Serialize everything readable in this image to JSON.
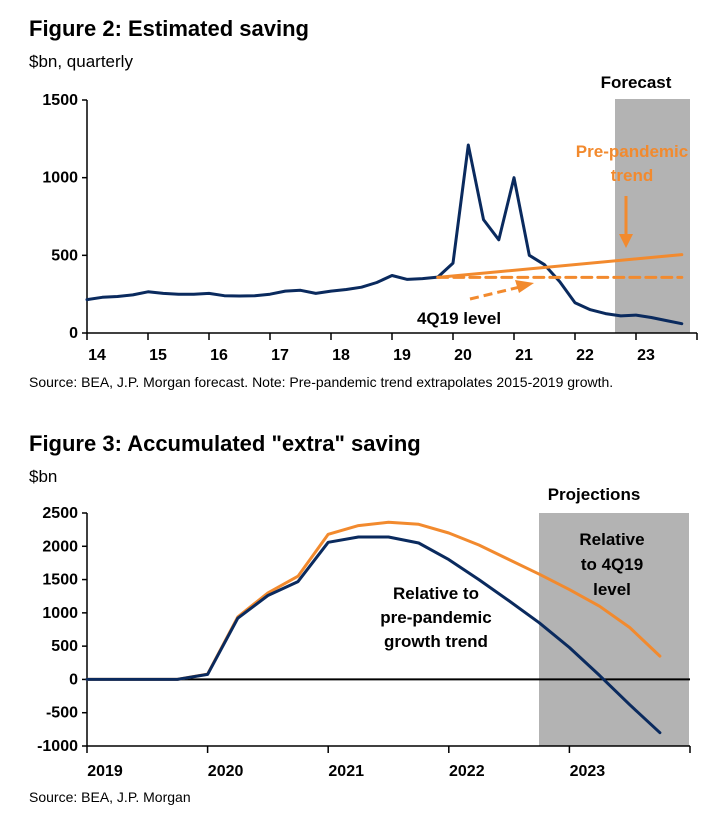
{
  "colors": {
    "navy": "#0a2a5e",
    "orange": "#f28a2e",
    "shade": "#b3b3b3",
    "axis": "#000000"
  },
  "fig2": {
    "title": "Figure 2: Estimated saving",
    "unit": "$bn, quarterly",
    "source": "Source: BEA, J.P. Morgan forecast. Note: Pre-pandemic trend extrapolates 2015-2019 growth.",
    "shade_label": "Forecast",
    "annotations": {
      "trend_line1": "Pre-pandemic",
      "trend_line2": "trend",
      "level": "4Q19 level"
    }
  },
  "fig3": {
    "title": "Figure 3: Accumulated \"extra\" saving",
    "unit": "$bn",
    "source": "Source: BEA, J.P. Morgan",
    "shade_label": "Projections",
    "annotations": {
      "relative_level": [
        "Relative",
        "to 4Q19",
        "level"
      ],
      "relative_trend": [
        "Relative to",
        "pre-pandemic",
        "growth trend"
      ]
    }
  },
  "chart_data": [
    {
      "type": "line",
      "title": "Figure 2: Estimated saving",
      "ylabel": "$bn, quarterly",
      "ylim": [
        0,
        1500
      ],
      "yticks": [
        0,
        500,
        1000,
        1500
      ],
      "xlim": [
        14.0,
        24.0
      ],
      "xtick_labels": [
        "14",
        "15",
        "16",
        "17",
        "18",
        "19",
        "20",
        "21",
        "22",
        "23"
      ],
      "forecast_start": 22.75,
      "series": [
        {
          "name": "Estimated saving",
          "color": "navy",
          "x": [
            14.0,
            14.25,
            14.5,
            14.75,
            15.0,
            15.25,
            15.5,
            15.75,
            16.0,
            16.25,
            16.5,
            16.75,
            17.0,
            17.25,
            17.5,
            17.75,
            18.0,
            18.25,
            18.5,
            18.75,
            19.0,
            19.25,
            19.5,
            19.75,
            20.0,
            20.25,
            20.5,
            20.75,
            21.0,
            21.25,
            21.5,
            21.75,
            22.0,
            22.25,
            22.5,
            22.75,
            23.0,
            23.25,
            23.5,
            23.75
          ],
          "values": [
            215,
            230,
            235,
            245,
            265,
            255,
            250,
            250,
            255,
            240,
            238,
            240,
            250,
            270,
            275,
            255,
            270,
            280,
            295,
            325,
            370,
            345,
            350,
            360,
            450,
            1210,
            730,
            600,
            1000,
            500,
            440,
            330,
            195,
            150,
            125,
            110,
            115,
            100,
            80,
            60
          ]
        },
        {
          "name": "Pre-pandemic trend",
          "color": "orange",
          "dash": false,
          "x": [
            19.75,
            23.75
          ],
          "values": [
            358,
            505
          ]
        },
        {
          "name": "4Q19 level",
          "color": "orange",
          "dash": true,
          "x": [
            19.75,
            23.75
          ],
          "values": [
            358,
            358
          ]
        }
      ]
    },
    {
      "type": "line",
      "title": "Figure 3: Accumulated \"extra\" saving",
      "ylabel": "$bn",
      "ylim": [
        -1000,
        2500
      ],
      "yticks": [
        -1000,
        -500,
        0,
        500,
        1000,
        1500,
        2000,
        2500
      ],
      "xlim": [
        2019.0,
        2024.0
      ],
      "xtick_labels": [
        "2019",
        "2020",
        "2021",
        "2022",
        "2023"
      ],
      "projection_start": 2022.75,
      "series": [
        {
          "name": "Relative to 4Q19 level",
          "color": "orange",
          "x": [
            2019.0,
            2019.25,
            2019.5,
            2019.75,
            2020.0,
            2020.25,
            2020.5,
            2020.75,
            2021.0,
            2021.25,
            2021.5,
            2021.75,
            2022.0,
            2022.25,
            2022.5,
            2022.75,
            2023.0,
            2023.25,
            2023.5,
            2023.75
          ],
          "values": [
            0,
            0,
            0,
            0,
            80,
            940,
            1300,
            1550,
            2180,
            2310,
            2360,
            2330,
            2200,
            2020,
            1800,
            1580,
            1350,
            1100,
            780,
            350
          ]
        },
        {
          "name": "Relative to pre-pandemic growth trend",
          "color": "navy",
          "x": [
            2019.0,
            2019.25,
            2019.5,
            2019.75,
            2020.0,
            2020.25,
            2020.5,
            2020.75,
            2021.0,
            2021.25,
            2021.5,
            2021.75,
            2022.0,
            2022.25,
            2022.5,
            2022.75,
            2023.0,
            2023.25,
            2023.5,
            2023.75
          ],
          "values": [
            0,
            0,
            0,
            0,
            75,
            920,
            1260,
            1470,
            2060,
            2140,
            2140,
            2050,
            1800,
            1500,
            1180,
            850,
            480,
            60,
            -380,
            -800
          ]
        }
      ]
    }
  ]
}
